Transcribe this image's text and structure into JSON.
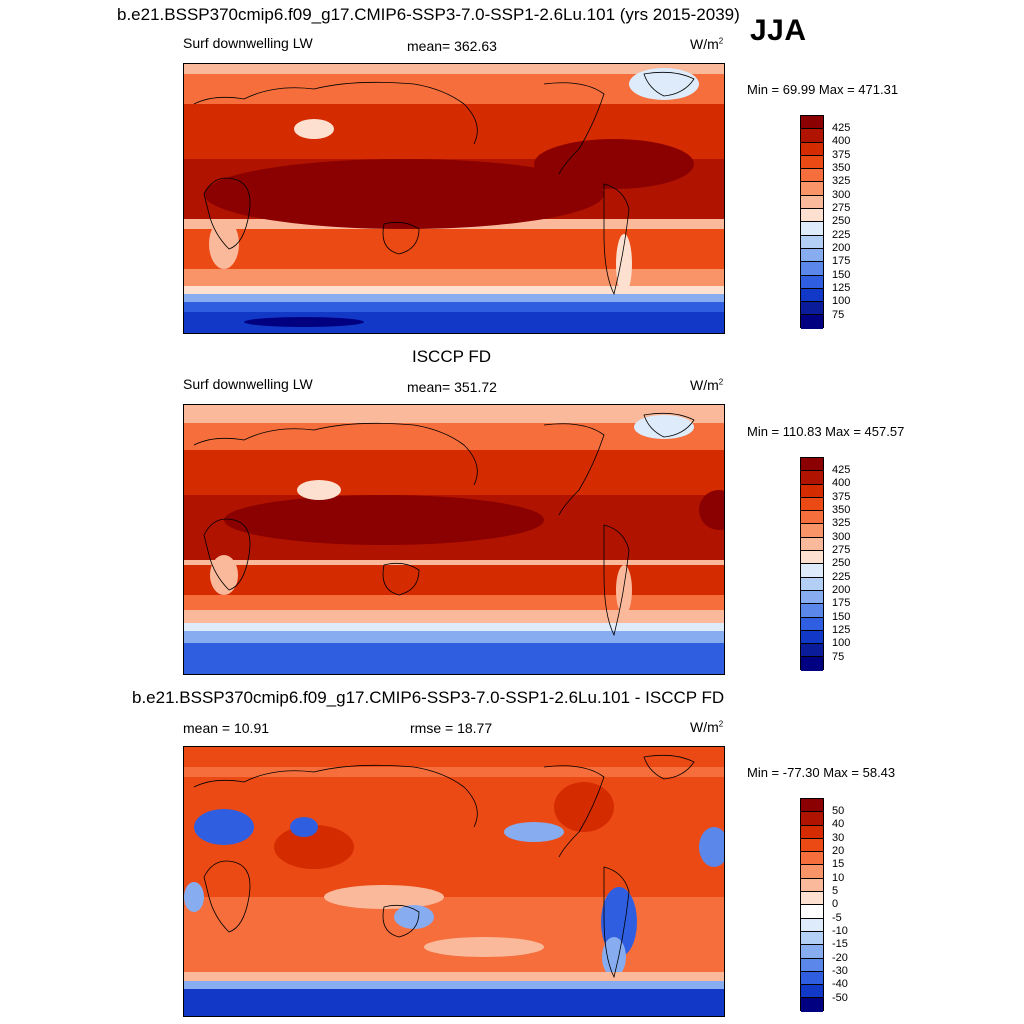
{
  "season": "JJA",
  "panels": [
    {
      "title": "b.e21.BSSP370cmip6.f09_g17.CMIP6-SSP3-7.0-SSP1-2.6Lu.101 (yrs 2015-2039)",
      "left_label": "Surf downwelling LW",
      "center_label": "mean= 362.63",
      "units": "W/m",
      "units_sup": "2",
      "minmax": "Min =  69.99 Max = 471.31",
      "colorbar_labels": [
        "425",
        "400",
        "375",
        "350",
        "325",
        "300",
        "275",
        "250",
        "225",
        "200",
        "175",
        "150",
        "125",
        "100",
        "75"
      ]
    },
    {
      "title": "ISCCP FD",
      "left_label": "Surf downwelling LW",
      "center_label": "mean= 351.72",
      "units": "W/m",
      "units_sup": "2",
      "minmax": "Min = 110.83 Max = 457.57",
      "colorbar_labels": [
        "425",
        "400",
        "375",
        "350",
        "325",
        "300",
        "275",
        "250",
        "225",
        "200",
        "175",
        "150",
        "125",
        "100",
        "75"
      ]
    },
    {
      "title": "b.e21.BSSP370cmip6.f09_g17.CMIP6-SSP3-7.0-SSP1-2.6Lu.101 - ISCCP FD",
      "left_label": "mean =  10.91",
      "center_label": "rmse =  18.77",
      "units": "W/m",
      "units_sup": "2",
      "minmax": "Min = -77.30 Max =  58.43",
      "colorbar_labels": [
        "50",
        "40",
        "30",
        "20",
        "15",
        "10",
        "5",
        "0",
        "-5",
        "-10",
        "-15",
        "-20",
        "-30",
        "-40",
        "-50"
      ]
    }
  ],
  "colors": {
    "abs_scale": [
      "#8b0000",
      "#b01400",
      "#d42b00",
      "#ec4a14",
      "#f56e3c",
      "#f99468",
      "#fbb99b",
      "#fde0cf",
      "#ddebfa",
      "#b4cff5",
      "#87acf0",
      "#5b86ea",
      "#2f5fe0",
      "#1238c8",
      "#0a1c9a",
      "#000080"
    ],
    "diff_scale": [
      "#8b0000",
      "#b01400",
      "#d42b00",
      "#ec4a14",
      "#f56e3c",
      "#f99468",
      "#fbb99b",
      "#fde0cf",
      "#ffffff",
      "#ddebfa",
      "#b4cff5",
      "#87acf0",
      "#5b86ea",
      "#2f5fe0",
      "#1238c8",
      "#000080"
    ]
  }
}
